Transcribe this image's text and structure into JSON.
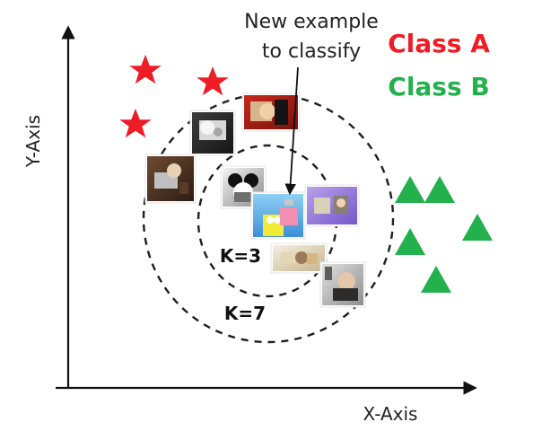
{
  "annotation": {
    "line1": "New example",
    "line2": "to classify"
  },
  "legend": {
    "class_a": "Class A",
    "class_b": "Class B",
    "class_a_color": "#ee1c25",
    "class_b_color": "#22b14c"
  },
  "axes": {
    "x_label": "X-Axis",
    "y_label": "Y-Axis"
  },
  "neighborhoods": {
    "inner_label": "K=3",
    "outer_label": "K=7"
  },
  "markers": {
    "class_a_shape": "star-icon",
    "class_b_shape": "triangle-icon"
  },
  "example_images": [
    "photo-thumbnail",
    "photo-thumbnail",
    "photo-thumbnail",
    "photo-thumbnail",
    "photo-thumbnail",
    "photo-thumbnail",
    "photo-thumbnail",
    "photo-thumbnail"
  ]
}
